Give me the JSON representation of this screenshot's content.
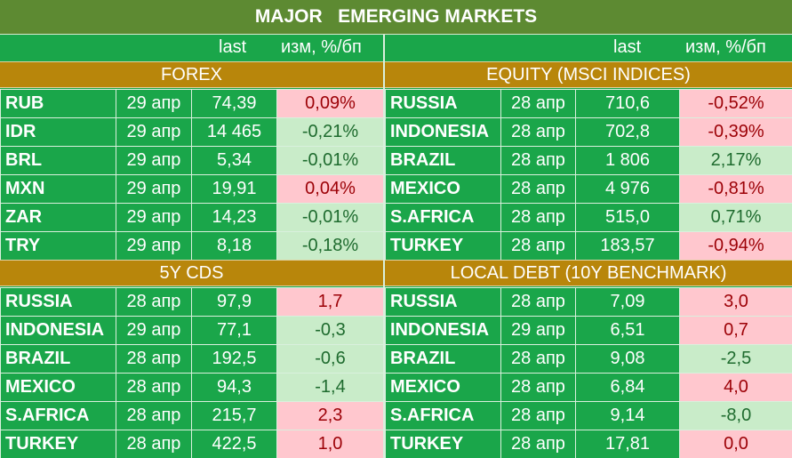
{
  "title": "MAJOR   EMERGING MARKETS",
  "headers": {
    "last": "last",
    "change": "изм, %/бп"
  },
  "sections": {
    "forex": {
      "label": "FOREX",
      "rows": [
        {
          "name": "RUB",
          "date": "29 апр",
          "last": "74,39",
          "change": "0,09%",
          "dir": "neg"
        },
        {
          "name": "IDR",
          "date": "29 апр",
          "last": "14 465",
          "change": "-0,21%",
          "dir": "pos"
        },
        {
          "name": "BRL",
          "date": "29 апр",
          "last": "5,34",
          "change": "-0,01%",
          "dir": "pos"
        },
        {
          "name": "MXN",
          "date": "29 апр",
          "last": "19,91",
          "change": "0,04%",
          "dir": "neg"
        },
        {
          "name": "ZAR",
          "date": "29 апр",
          "last": "14,23",
          "change": "-0,01%",
          "dir": "pos"
        },
        {
          "name": "TRY",
          "date": "29 апр",
          "last": "8,18",
          "change": "-0,18%",
          "dir": "pos"
        }
      ]
    },
    "equity": {
      "label": "EQUITY (MSCI INDICES)",
      "rows": [
        {
          "name": "RUSSIA",
          "date": "28 апр",
          "last": "710,6",
          "change": "-0,52%",
          "dir": "neg"
        },
        {
          "name": "INDONESIA",
          "date": "28 апр",
          "last": "702,8",
          "change": "-0,39%",
          "dir": "neg"
        },
        {
          "name": "BRAZIL",
          "date": "28 апр",
          "last": "1 806",
          "change": "2,17%",
          "dir": "pos"
        },
        {
          "name": "MEXICO",
          "date": "28 апр",
          "last": "4 976",
          "change": "-0,81%",
          "dir": "neg"
        },
        {
          "name": "S.AFRICA",
          "date": "28 апр",
          "last": "515,0",
          "change": "0,71%",
          "dir": "pos"
        },
        {
          "name": "TURKEY",
          "date": "28 апр",
          "last": "183,57",
          "change": "-0,94%",
          "dir": "neg"
        }
      ]
    },
    "cds": {
      "label": "5Y CDS",
      "rows": [
        {
          "name": "RUSSIA",
          "date": "28 апр",
          "last": "97,9",
          "change": "1,7",
          "dir": "neg"
        },
        {
          "name": "INDONESIA",
          "date": "29 апр",
          "last": "77,1",
          "change": "-0,3",
          "dir": "pos"
        },
        {
          "name": "BRAZIL",
          "date": "28 апр",
          "last": "192,5",
          "change": "-0,6",
          "dir": "pos"
        },
        {
          "name": "MEXICO",
          "date": "28 апр",
          "last": "94,3",
          "change": "-1,4",
          "dir": "pos"
        },
        {
          "name": "S.AFRICA",
          "date": "28 апр",
          "last": "215,7",
          "change": "2,3",
          "dir": "neg"
        },
        {
          "name": "TURKEY",
          "date": "28 апр",
          "last": "422,5",
          "change": "1,0",
          "dir": "neg"
        }
      ]
    },
    "debt": {
      "label": "LOCAL DEBT (10Y BENCHMARK)",
      "rows": [
        {
          "name": "RUSSIA",
          "date": "28 апр",
          "last": "7,09",
          "change": "3,0",
          "dir": "neg"
        },
        {
          "name": "INDONESIA",
          "date": "29 апр",
          "last": "6,51",
          "change": "0,7",
          "dir": "neg"
        },
        {
          "name": "BRAZIL",
          "date": "28 апр",
          "last": "9,08",
          "change": "-2,5",
          "dir": "pos"
        },
        {
          "name": "MEXICO",
          "date": "28 апр",
          "last": "6,84",
          "change": "4,0",
          "dir": "neg"
        },
        {
          "name": "S.AFRICA",
          "date": "28 апр",
          "last": "9,14",
          "change": "-8,0",
          "dir": "pos"
        },
        {
          "name": "TURKEY",
          "date": "28 апр",
          "last": "17,81",
          "change": "0,0",
          "dir": "neg"
        }
      ]
    }
  },
  "colors": {
    "background": "#1aa64a",
    "title_bar": "#5d8a32",
    "section_bar": "#b8860b",
    "positive_fill": "#c9ecc9",
    "negative_fill": "#ffc7ce"
  }
}
